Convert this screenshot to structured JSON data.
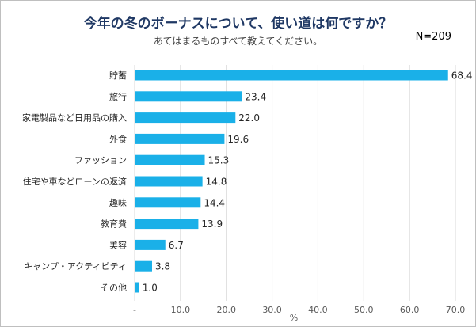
{
  "chart_data": {
    "type": "bar",
    "orientation": "horizontal",
    "title": "今年の冬のボーナスについて、使い道は何ですか？",
    "subtitle": "あてはまるものすべて教えてください。",
    "sample_size": "N=209",
    "categories": [
      "貯蓄",
      "旅行",
      "家電製品など日用品の購入",
      "外食",
      "ファッション",
      "住宅や車などローンの返済",
      "趣味",
      "教育費",
      "美容",
      "キャンプ・アクティビティ",
      "その他"
    ],
    "values": [
      68.4,
      23.4,
      22.0,
      19.6,
      15.3,
      14.8,
      14.4,
      13.9,
      6.7,
      3.8,
      1.0
    ],
    "value_labels": [
      "68.4",
      "23.4",
      "22.0",
      "19.6",
      "15.3",
      "14.8",
      "14.4",
      "13.9",
      "6.7",
      "3.8",
      "1.0"
    ],
    "xlim": [
      0,
      70
    ],
    "xticks": [
      0,
      10,
      20,
      30,
      40,
      50,
      60,
      70
    ],
    "xtick_labels": [
      "-",
      "10.0",
      "20.0",
      "30.0",
      "40.0",
      "50.0",
      "60.0",
      "70.0"
    ],
    "xlabel": "%",
    "ylabel": "",
    "grid": true,
    "bar_color": "#1ab0e8",
    "grid_color": "#d9d9d9"
  }
}
